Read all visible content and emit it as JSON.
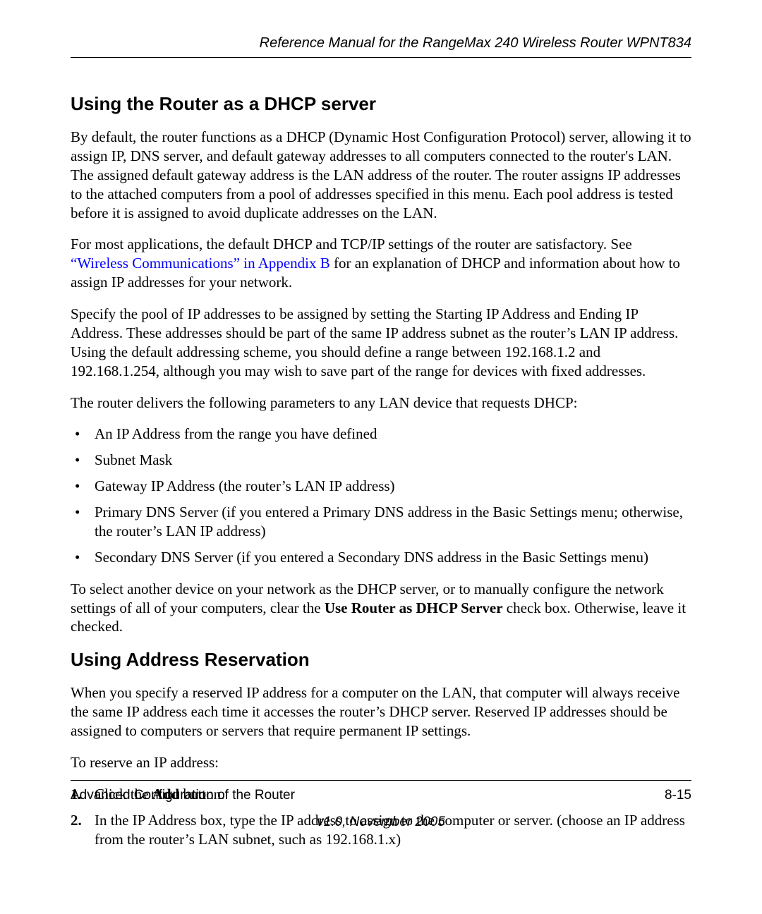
{
  "header": {
    "running_title": "Reference Manual for the RangeMax 240 Wireless Router WPNT834"
  },
  "section1": {
    "title": "Using the Router as a DHCP server",
    "p1": "By default, the router functions as a DHCP (Dynamic Host Configuration Protocol) server, allowing it to assign IP, DNS server, and default gateway addresses to all computers connected to the router's LAN. The assigned default gateway address is the LAN address of the router. The router assigns IP addresses to the attached computers from a pool of addresses specified in this menu. Each pool address is tested before it is assigned to avoid duplicate addresses on the LAN.",
    "p2a": "For most applications, the default DHCP and TCP/IP settings of the router are satisfactory. See ",
    "p2_link": "“Wireless Communications” in Appendix B",
    "p2b": " for an explanation of DHCP and information about how to assign IP addresses for your network.",
    "p3": "Specify the pool of IP addresses to be assigned by setting the Starting IP Address and Ending IP Address. These addresses should be part of the same IP address subnet as the router’s LAN IP address. Using the default addressing scheme, you should define a range between 192.168.1.2 and 192.168.1.254, although you may wish to save part of the range for devices with fixed addresses.",
    "p4": "The router delivers the following parameters to any LAN device that requests DHCP:",
    "bullets": [
      "An IP Address from the range you have defined",
      "Subnet Mask",
      "Gateway IP Address (the router’s LAN IP address)",
      "Primary DNS Server (if you entered a Primary DNS address in the Basic Settings menu; otherwise, the router’s LAN IP address)",
      "Secondary DNS Server (if you entered a Secondary DNS address in the Basic Settings menu)"
    ],
    "p5a": "To select another device on your network as the DHCP server, or to manually configure the network settings of all of your computers, clear the ",
    "p5_bold": "Use Router as DHCP Server",
    "p5b": " check box. Otherwise, leave it checked."
  },
  "section2": {
    "title": "Using Address Reservation",
    "p1": "When you specify a reserved IP address for a computer on the LAN, that computer will always receive the same IP address each time it accesses the router’s DHCP server. Reserved IP addresses should be assigned to computers or servers that require permanent IP settings.",
    "p2": "To reserve an IP address:",
    "steps": {
      "s1a": "Click the ",
      "s1_bold": "Add",
      "s1b": " button.",
      "s2": "In the IP Address box, type the IP address to assign to the computer or server. (choose an IP address from the router’s LAN subnet, such as 192.168.1.x)"
    }
  },
  "footer": {
    "left": "Advanced Configuration of the Router",
    "right": "8-15",
    "version": "v1.0, November 2005"
  }
}
